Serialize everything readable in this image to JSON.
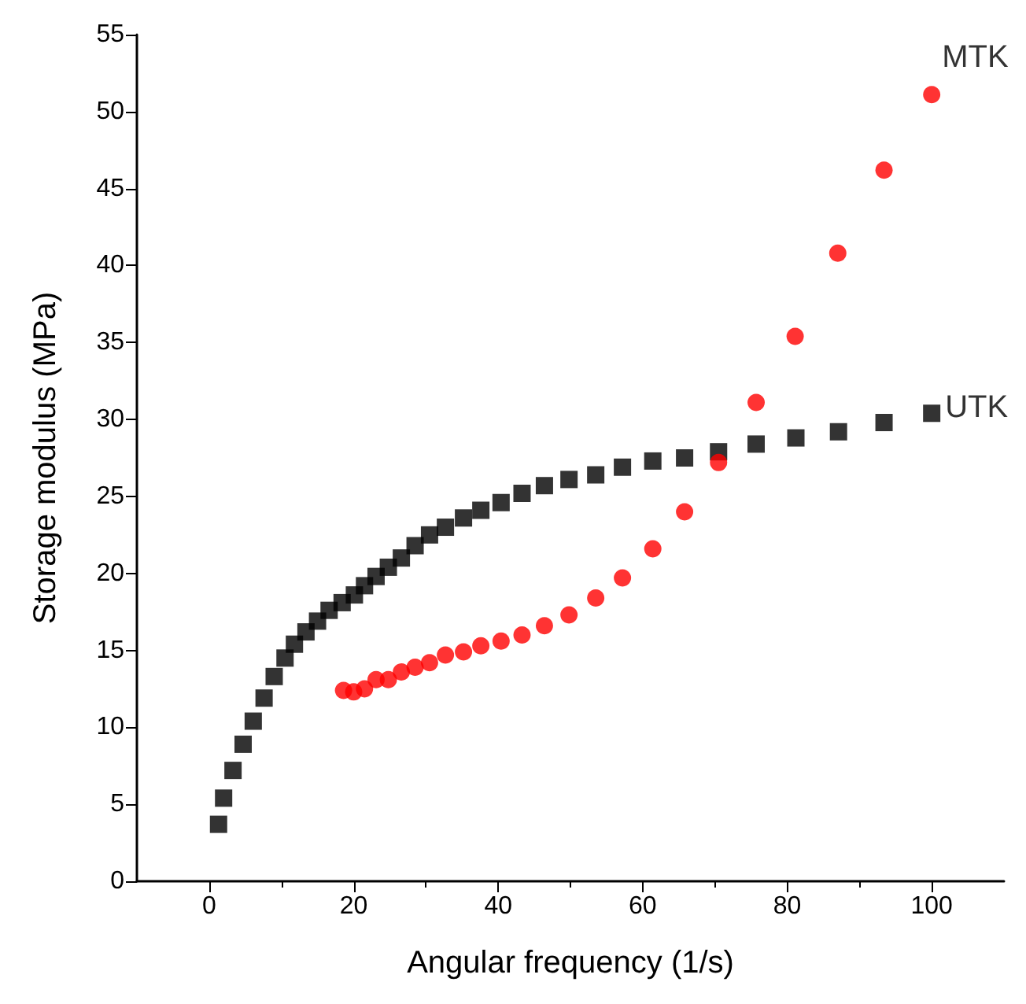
{
  "chart_data": {
    "type": "scatter",
    "xlabel": "Angular frequency (1/s)",
    "ylabel": "Storage modulus (MPa)",
    "xlim": [
      -10,
      110
    ],
    "xticks": [
      0,
      20,
      40,
      60,
      80,
      100
    ],
    "ylim": [
      0,
      55
    ],
    "yticks": [
      0,
      5,
      10,
      15,
      20,
      25,
      30,
      35,
      40,
      45,
      50,
      55
    ],
    "grid": false,
    "legend": false,
    "series": [
      {
        "name": "UTK",
        "color": "#000000",
        "marker": "square",
        "x": [
          1.3,
          2.0,
          3.3,
          4.7,
          6.1,
          7.6,
          9.0,
          10.5,
          11.8,
          13.4,
          15.0,
          16.6,
          18.4,
          20.1,
          21.5,
          23.1,
          24.8,
          26.6,
          28.5,
          30.5,
          32.7,
          35.2,
          37.6,
          40.4,
          43.3,
          46.4,
          49.8,
          53.5,
          57.2,
          61.4,
          65.8,
          70.5,
          75.7,
          81.2,
          87.1,
          93.4,
          100.0
        ],
        "values": [
          3.7,
          5.4,
          7.2,
          8.9,
          10.4,
          11.9,
          13.3,
          14.5,
          15.4,
          16.2,
          16.9,
          17.6,
          18.1,
          18.6,
          19.2,
          19.8,
          20.4,
          21.0,
          21.8,
          22.5,
          23.0,
          23.6,
          24.1,
          24.6,
          25.2,
          25.7,
          26.1,
          26.4,
          26.9,
          27.3,
          27.5,
          27.9,
          28.4,
          28.8,
          29.2,
          29.8,
          30.4
        ]
      },
      {
        "name": "MTK",
        "color": "#ff0000",
        "marker": "circle",
        "x": [
          18.6,
          20.0,
          21.5,
          23.1,
          24.8,
          26.6,
          28.5,
          30.5,
          32.7,
          35.2,
          37.6,
          40.4,
          43.3,
          46.4,
          49.8,
          53.5,
          57.2,
          61.4,
          65.8,
          70.5,
          75.7,
          81.1,
          87.0,
          93.4,
          100.0
        ],
        "values": [
          12.4,
          12.3,
          12.5,
          13.1,
          13.1,
          13.6,
          13.9,
          14.2,
          14.7,
          14.9,
          15.3,
          15.6,
          16.0,
          16.6,
          17.3,
          18.4,
          19.7,
          21.6,
          24.0,
          27.2,
          31.1,
          35.4,
          40.8,
          46.2,
          51.1
        ]
      }
    ]
  }
}
